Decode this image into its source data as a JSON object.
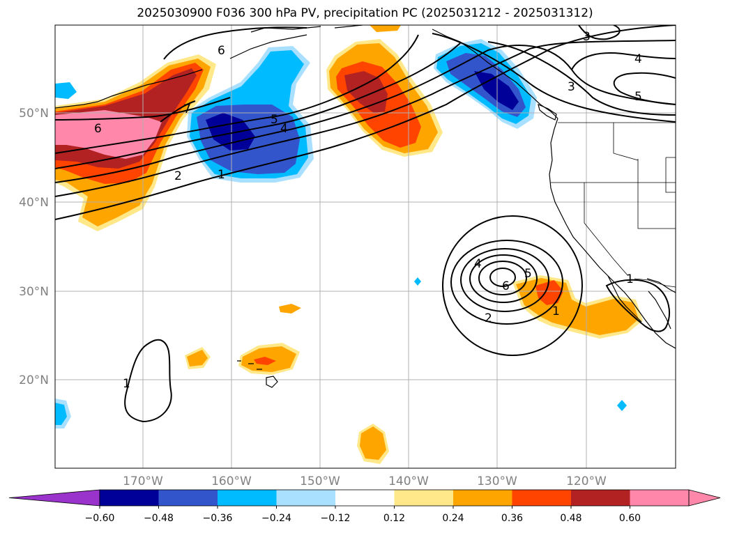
{
  "title": "2025030900 F036 300 hPa PV, precipitation PC (2025031212 - 2025031312)",
  "axes": {
    "lat_labels": [
      "50°N",
      "40°N",
      "30°N",
      "20°N"
    ],
    "lon_labels": [
      "170°W",
      "160°W",
      "150°W",
      "140°W",
      "130°W",
      "120°W"
    ]
  },
  "colorbar": {
    "colors": [
      "#9933cc",
      "#000099",
      "#3355cc",
      "#00bbff",
      "#aae0ff",
      "#ffffff",
      "#ffe88a",
      "#ffa500",
      "#ff4400",
      "#b22222",
      "#ff88aa",
      "#ff88aa"
    ],
    "ticks": [
      "−0.60",
      "−0.48",
      "−0.36",
      "−0.24",
      "−0.12",
      "0.12",
      "0.24",
      "0.36",
      "0.48",
      "0.60"
    ]
  },
  "pv_contour_labels": [
    "6",
    "7",
    "6",
    "2",
    "1",
    "5",
    "4",
    "3",
    "4",
    "5",
    "3",
    "4",
    "5",
    "6",
    "2",
    "1",
    "1",
    "1"
  ]
}
